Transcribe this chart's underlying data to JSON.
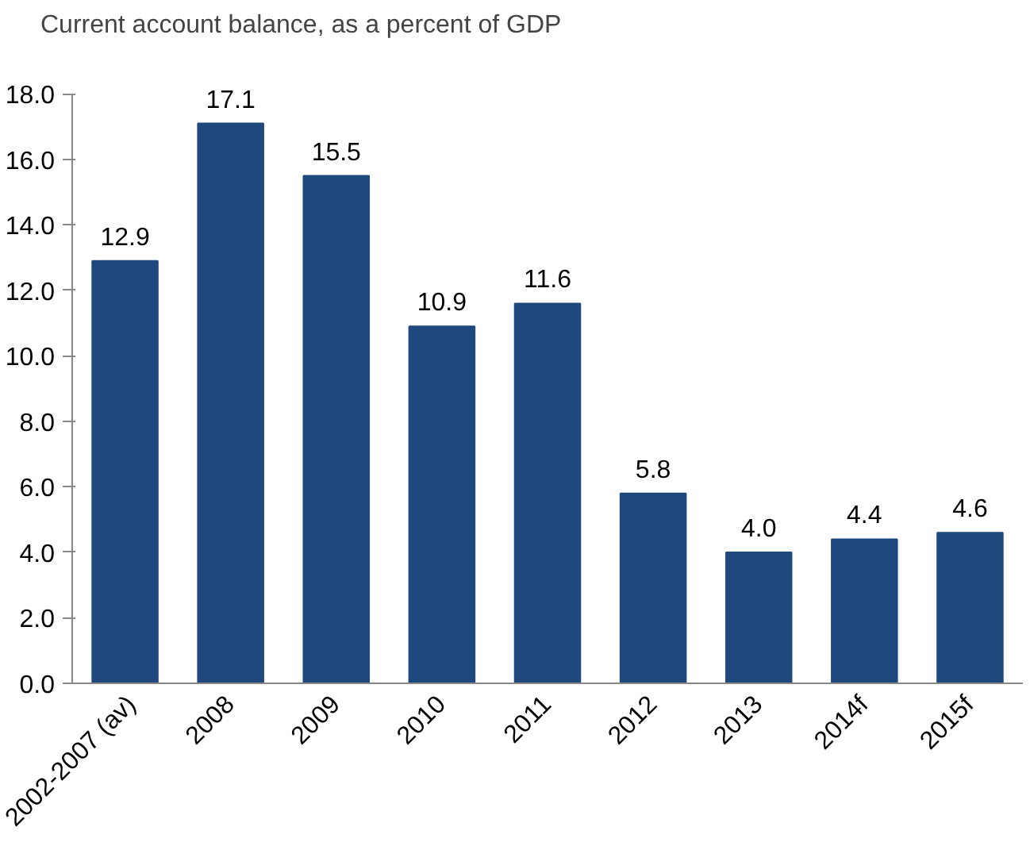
{
  "chart_data": {
    "type": "bar",
    "title": "Current account balance, as a percent of GDP",
    "categories": [
      "2002-2007 (av)",
      "2008",
      "2009",
      "2010",
      "2011",
      "2012",
      "2013",
      "2014f",
      "2015f"
    ],
    "values": [
      12.9,
      17.1,
      15.5,
      10.9,
      11.6,
      5.8,
      4.0,
      4.4,
      4.6
    ],
    "value_labels": [
      "12.9",
      "17.1",
      "15.5",
      "10.9",
      "11.6",
      "5.8",
      "4.0",
      "4.4",
      "4.6"
    ],
    "color": "#1f497d",
    "ylim": [
      0,
      18
    ],
    "yticks": [
      {
        "value": 0,
        "label": "0.0"
      },
      {
        "value": 2,
        "label": "2.0"
      },
      {
        "value": 4,
        "label": "4.0"
      },
      {
        "value": 6,
        "label": "6.0"
      },
      {
        "value": 8,
        "label": "8.0"
      },
      {
        "value": 10,
        "label": "10.0"
      },
      {
        "value": 12,
        "label": "12.0"
      },
      {
        "value": 14,
        "label": "14.0"
      },
      {
        "value": 16,
        "label": "16.0"
      },
      {
        "value": 18,
        "label": "18.0"
      }
    ],
    "grid": false
  }
}
